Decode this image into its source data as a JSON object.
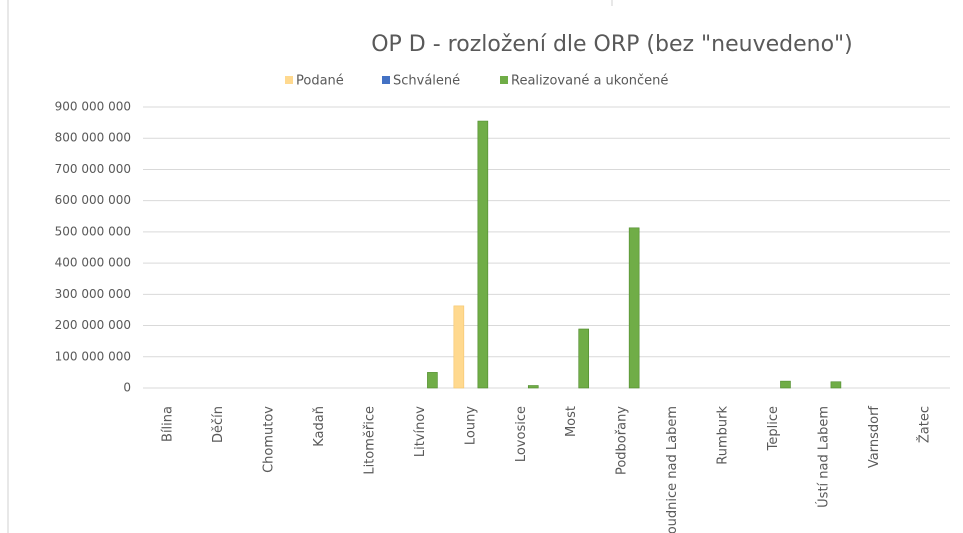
{
  "chart_data": {
    "type": "bar",
    "title": "OP D - rozložení dle ORP (bez \"neuvedeno\")",
    "categories": [
      "Bílina",
      "Děčín",
      "Chomutov",
      "Kadaň",
      "Litoměřice",
      "Litvínov",
      "Louny",
      "Lovosice",
      "Most",
      "Podbořany",
      "Roudnice nad Labem",
      "Rumburk",
      "Teplice",
      "Ústí nad Labem",
      "Varnsdorf",
      "Žatec"
    ],
    "series": [
      {
        "name": "Podané",
        "color": "#ffd98f",
        "values": [
          0,
          0,
          0,
          0,
          0,
          0,
          263000000,
          0,
          0,
          0,
          0,
          0,
          0,
          0,
          0,
          0
        ]
      },
      {
        "name": "Schválené",
        "color": "#4472c4",
        "values": [
          0,
          0,
          0,
          0,
          0,
          0,
          0,
          0,
          0,
          0,
          0,
          0,
          0,
          0,
          0,
          0
        ]
      },
      {
        "name": "Realizované a ukončené",
        "color": "#70ad47",
        "values": [
          0,
          0,
          0,
          0,
          0,
          50000000,
          855000000,
          8000000,
          189000000,
          513000000,
          0,
          0,
          22000000,
          20000000,
          0,
          0
        ]
      }
    ],
    "ylim": [
      0,
      900000000
    ],
    "yticks": [
      0,
      {
        "value": 100000000,
        "label": "100 000 000"
      },
      {
        "value": 200000000,
        "label": "200 000 000"
      },
      {
        "value": 300000000,
        "label": "300 000 000"
      },
      {
        "value": 400000000,
        "label": "400 000 000"
      },
      {
        "value": 500000000,
        "label": "500 000 000"
      },
      {
        "value": 600000000,
        "label": "600 000 000"
      },
      {
        "value": 700000000,
        "label": "700 000 000"
      },
      {
        "value": 800000000,
        "label": "800 000 000"
      },
      {
        "value": 900000000,
        "label": "900 000 000"
      }
    ],
    "grid": true
  }
}
